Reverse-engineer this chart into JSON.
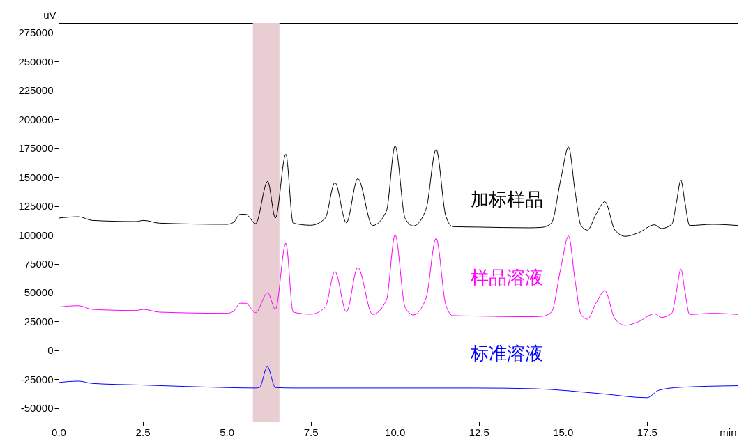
{
  "chart_data": {
    "type": "line",
    "xlabel": "min",
    "ylabel": "uV",
    "xlim": [
      0,
      20.2
    ],
    "xticks": [
      {
        "value": 0,
        "label": "0.0"
      },
      {
        "value": 2.5,
        "label": "2.5"
      },
      {
        "value": 5,
        "label": "5.0"
      },
      {
        "value": 7.5,
        "label": "7.5"
      },
      {
        "value": 10,
        "label": "10.0"
      },
      {
        "value": 12.5,
        "label": "12.5"
      },
      {
        "value": 15,
        "label": "15.0"
      },
      {
        "value": 17.5,
        "label": "17.5"
      }
    ],
    "ylim": [
      -61600,
      283400
    ],
    "yticks": [
      -50000,
      -25000,
      0,
      25000,
      50000,
      75000,
      100000,
      125000,
      150000,
      175000,
      200000,
      225000,
      250000,
      275000
    ],
    "x": [
      0,
      0.6,
      1.0,
      2.3,
      2.53,
      3.0,
      5.0,
      5.2,
      5.4,
      5.57,
      5.86,
      6.22,
      6.45,
      6.76,
      6.98,
      7.5,
      7.93,
      8.22,
      8.56,
      8.9,
      9.34,
      9.75,
      10.01,
      10.31,
      10.55,
      10.93,
      11.23,
      11.52,
      11.73,
      12.5,
      14.0,
      14.38,
      14.66,
      14.94,
      15.17,
      15.36,
      15.54,
      15.73,
      15.99,
      16.25,
      16.55,
      16.86,
      17.24,
      17.73,
      17.93,
      18.24,
      18.38,
      18.51,
      18.63,
      18.77,
      19.45,
      20.2
    ],
    "series": [
      {
        "name": "加标样品",
        "color": "#000000",
        "values": [
          114500,
          115700,
          112500,
          111500,
          112500,
          110100,
          109100,
          110700,
          117800,
          117800,
          109700,
          146300,
          114500,
          169800,
          110100,
          108300,
          114300,
          145300,
          110500,
          148700,
          108100,
          120400,
          177000,
          114200,
          107700,
          122200,
          174000,
          116100,
          107100,
          106700,
          106100,
          106500,
          110100,
          148300,
          176000,
          138300,
          108100,
          104100,
          118100,
          128600,
          104100,
          98700,
          101700,
          108700,
          105500,
          109100,
          128200,
          147300,
          128200,
          108100,
          109100,
          108100
        ]
      },
      {
        "name": "样品溶液",
        "color": "#ff00ff",
        "values": [
          37500,
          38700,
          35500,
          34500,
          35500,
          33100,
          32100,
          33700,
          40800,
          40800,
          32700,
          49800,
          35500,
          92800,
          33100,
          31300,
          37300,
          68300,
          33500,
          71700,
          31100,
          43400,
          100000,
          37200,
          30700,
          45200,
          97000,
          39100,
          30100,
          29700,
          29100,
          29500,
          33100,
          71300,
          99000,
          61300,
          31100,
          27100,
          41100,
          51600,
          27100,
          21700,
          24700,
          31700,
          28500,
          32100,
          51200,
          70300,
          51200,
          31100,
          32100,
          31100
        ]
      },
      {
        "name": "标准溶液",
        "color": "#0000ff",
        "x": [
          0,
          0.6,
          1.0,
          2.5,
          5.0,
          5.86,
          5.98,
          6.21,
          6.45,
          7.0,
          12.37,
          14.13,
          16.17,
          17.5,
          17.85,
          18.48,
          20.2
        ],
        "values": [
          -27800,
          -26600,
          -28600,
          -30000,
          -32200,
          -32600,
          -32000,
          -14100,
          -32200,
          -32600,
          -32600,
          -33200,
          -37600,
          -41000,
          -34600,
          -32000,
          -30600
        ]
      }
    ],
    "bands": [
      {
        "axis": "x",
        "from": 5.78,
        "to": 6.57,
        "color": "#e8cdd3"
      }
    ]
  }
}
